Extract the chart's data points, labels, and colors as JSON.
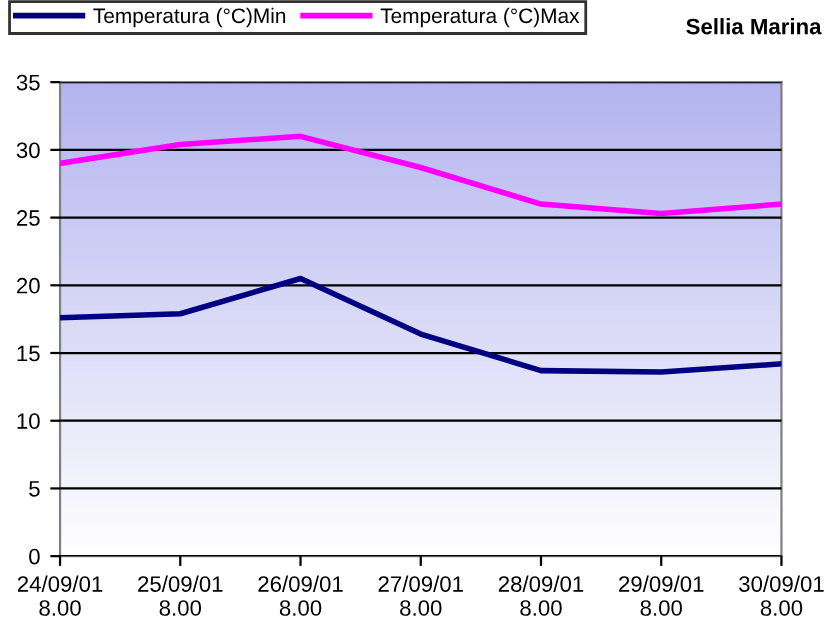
{
  "chart_data": {
    "type": "line",
    "title": "Sellia Marina",
    "categories": [
      "24/09/01\n8.00",
      "25/09/01\n8.00",
      "26/09/01\n8.00",
      "27/09/01\n8.00",
      "28/09/01\n8.00",
      "29/09/01\n8.00",
      "30/09/01\n8.00"
    ],
    "series": [
      {
        "name": "Temperatura (°C)Min",
        "color": "#000080",
        "values": [
          17.6,
          17.9,
          20.5,
          16.4,
          13.7,
          13.6,
          14.2
        ]
      },
      {
        "name": "Temperatura (°C)Max",
        "color": "#ff00ff",
        "values": [
          29.0,
          30.4,
          31.0,
          28.7,
          26.0,
          25.3,
          26.0
        ]
      }
    ],
    "ylim": [
      0,
      35
    ],
    "yticks": [
      0,
      5,
      10,
      15,
      20,
      25,
      30,
      35
    ],
    "grid": "y",
    "legend": "top",
    "marker": "none",
    "line_style": "solid"
  }
}
